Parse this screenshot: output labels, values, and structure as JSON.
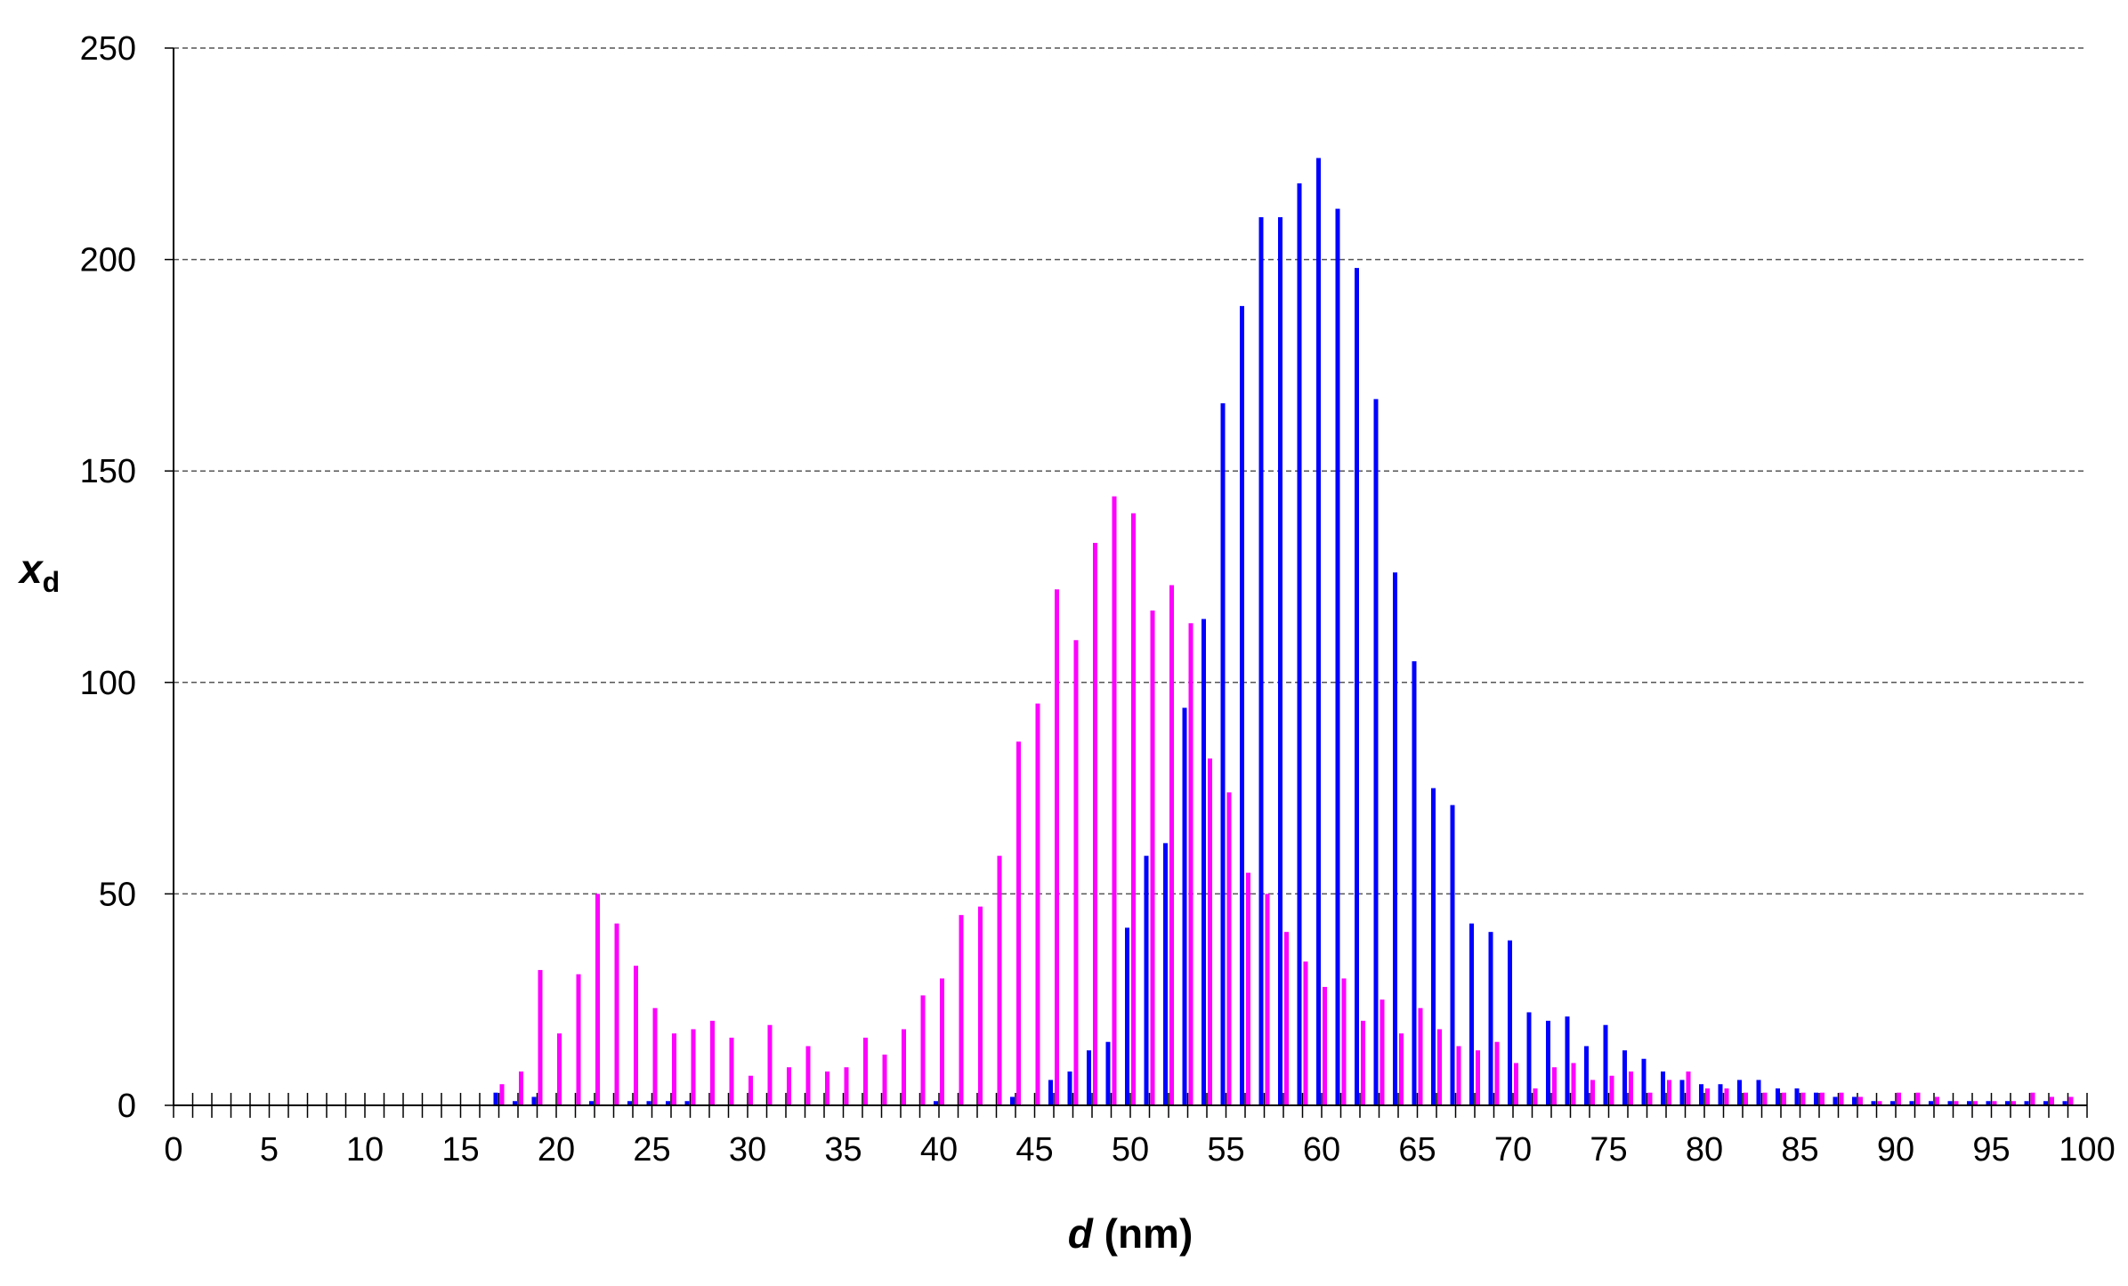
{
  "chart_data": {
    "type": "bar",
    "title": "",
    "xlabel": {
      "var": "d",
      "unit": " (nm)"
    },
    "ylabel": {
      "var": "x",
      "sub": "d"
    },
    "xlim": [
      0,
      100
    ],
    "ylim": [
      0,
      250
    ],
    "x_ticks": [
      0,
      5,
      10,
      15,
      20,
      25,
      30,
      35,
      40,
      45,
      50,
      55,
      60,
      65,
      70,
      75,
      80,
      85,
      90,
      95,
      100
    ],
    "y_ticks": [
      0,
      50,
      100,
      150,
      200,
      250
    ],
    "grid": "horizontal dashed",
    "legend": "none",
    "x": [
      17,
      18,
      19,
      20,
      21,
      22,
      23,
      24,
      25,
      26,
      27,
      28,
      29,
      30,
      31,
      32,
      33,
      34,
      35,
      36,
      37,
      38,
      39,
      40,
      41,
      42,
      43,
      44,
      45,
      46,
      47,
      48,
      49,
      50,
      51,
      52,
      53,
      54,
      55,
      56,
      57,
      58,
      59,
      60,
      61,
      62,
      63,
      64,
      65,
      66,
      67,
      68,
      69,
      70,
      71,
      72,
      73,
      74,
      75,
      76,
      77,
      78,
      79,
      80,
      81,
      82,
      83,
      84,
      85,
      86,
      87,
      88,
      89,
      90,
      91,
      92,
      93,
      94,
      95,
      96,
      97,
      98,
      99
    ],
    "series": [
      {
        "color": "#0000ff",
        "values": [
          3,
          1,
          2,
          0,
          0,
          1,
          0,
          1,
          1,
          1,
          1,
          0,
          0,
          0,
          0,
          0,
          0,
          0,
          0,
          0,
          0,
          0,
          0,
          1,
          0,
          0,
          0,
          2,
          0,
          6,
          8,
          13,
          15,
          42,
          59,
          62,
          94,
          115,
          166,
          189,
          210,
          210,
          218,
          224,
          212,
          198,
          167,
          126,
          105,
          75,
          71,
          43,
          41,
          39,
          22,
          20,
          21,
          14,
          19,
          13,
          11,
          8,
          6,
          5,
          5,
          6,
          6,
          4,
          4,
          3,
          2,
          2,
          1,
          1,
          1,
          1,
          1,
          1,
          1,
          1,
          1,
          1,
          1
        ]
      },
      {
        "color": "#ff00ff",
        "values": [
          5,
          8,
          32,
          17,
          31,
          50,
          43,
          33,
          23,
          17,
          18,
          20,
          16,
          7,
          19,
          9,
          14,
          8,
          9,
          16,
          12,
          18,
          26,
          30,
          45,
          47,
          59,
          86,
          95,
          122,
          110,
          133,
          144,
          140,
          117,
          123,
          114,
          82,
          74,
          55,
          50,
          41,
          34,
          28,
          30,
          20,
          25,
          17,
          23,
          18,
          14,
          13,
          15,
          10,
          4,
          9,
          10,
          6,
          7,
          8,
          3,
          6,
          8,
          4,
          4,
          3,
          3,
          3,
          3,
          3,
          3,
          2,
          1,
          3,
          3,
          2,
          1,
          1,
          1,
          1,
          3,
          2,
          2
        ]
      }
    ]
  }
}
